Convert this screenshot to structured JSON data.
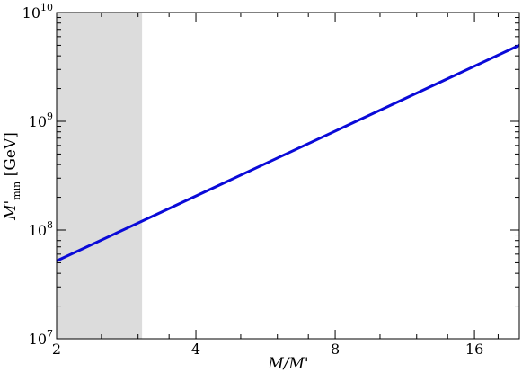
{
  "chart_data": {
    "type": "line",
    "title": "",
    "xlabel": {
      "main": "M/M",
      "prime": "'"
    },
    "ylabel": {
      "main": "M",
      "prime": "'",
      "sub": "min",
      "unit": " [GeV]"
    },
    "x_scale": "log2",
    "y_scale": "log10",
    "xlim": [
      2,
      20
    ],
    "ylim": [
      10000000,
      10000000000
    ],
    "x_ticks": [
      {
        "value": 2,
        "label": "2"
      },
      {
        "value": 4,
        "label": "4"
      },
      {
        "value": 8,
        "label": "8"
      },
      {
        "value": 16,
        "label": "16"
      }
    ],
    "y_ticks": [
      {
        "value": 10000000,
        "base": "10",
        "exp": "7"
      },
      {
        "value": 100000000,
        "base": "10",
        "exp": "8"
      },
      {
        "value": 1000000000,
        "base": "10",
        "exp": "9"
      },
      {
        "value": 10000000000,
        "base": "10",
        "exp": "10"
      }
    ],
    "shaded_region": {
      "x": [
        2,
        3.06
      ],
      "color": "#dcdcdc"
    },
    "series": [
      {
        "color": "#0a0ad8",
        "x": [
          2,
          20
        ],
        "y": [
          52000000,
          5000000000
        ]
      }
    ],
    "grid": false
  }
}
